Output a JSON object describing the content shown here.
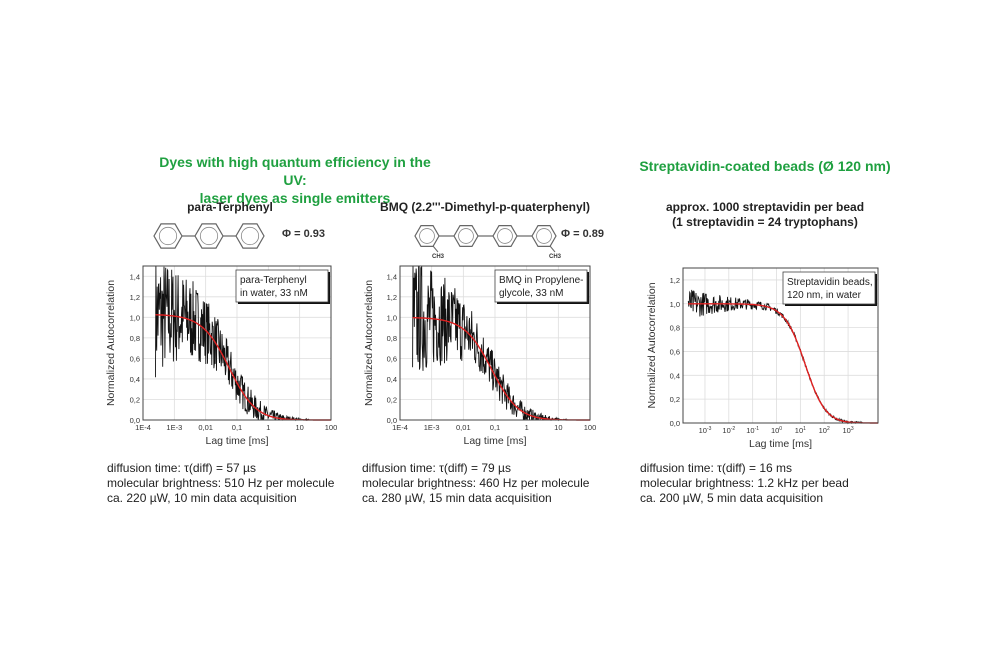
{
  "headings": {
    "left": [
      "Dyes with high quantum efficiency in the UV:",
      "laser dyes as single emitters"
    ],
    "right": "Streptavidin-coated beads (Ø 120 nm)"
  },
  "panels": [
    {
      "title": [
        "para-Terphenyl"
      ],
      "phi": "Φ = 0.93",
      "caption": [
        "diffusion time: τ(diff) = 57 µs",
        "molecular brightness: 510 Hz per molecule",
        "ca. 220 µW, 10 min data acquisition"
      ]
    },
    {
      "title": [
        "BMQ (2.2'''-Dimethyl-p-quaterphenyl)"
      ],
      "phi": "Φ = 0.89",
      "ch3": "CH3",
      "caption": [
        "diffusion time: τ(diff) = 79 µs",
        "molecular brightness: 460 Hz per molecule",
        "ca. 280 µW, 15 min data acquisition"
      ]
    },
    {
      "title": [
        "approx. 1000 streptavidin per bead",
        "(1 streptavidin = 24 tryptophans)"
      ],
      "caption": [
        "diffusion time: τ(diff) = 16 ms",
        "molecular brightness: 1.2 kHz per bead",
        "ca. 200 µW, 5 min data acquisition"
      ]
    }
  ],
  "chart_data": [
    {
      "type": "line",
      "xscale": "log",
      "xlim": [
        0.0001,
        100
      ],
      "ylim": [
        0,
        1.5
      ],
      "grid": true,
      "xlabel": "Lag time [ms]",
      "ylabel": "Normalized Autocorrelation",
      "xticks": [
        0.0001,
        0.001,
        0.01,
        0.1,
        1,
        10,
        100
      ],
      "xticklabels": [
        "1E-4",
        "1E-3",
        "0,01",
        "0,1",
        "1",
        "10",
        "100"
      ],
      "yticks": [
        0,
        0.2,
        0.4,
        0.6,
        0.8,
        1.0,
        1.2,
        1.4
      ],
      "yticklabels": [
        "0,0",
        "0,2",
        "0,4",
        "0,6",
        "0,8",
        "1,0",
        "1,2",
        "1,4"
      ],
      "legend": [
        "para-Terphenyl",
        "in water, 33 nM"
      ],
      "legend_position": "top-right",
      "series": [
        {
          "role": "data",
          "color": "#111111",
          "x": [
            0.00025,
            0.0005,
            0.001,
            0.002,
            0.005,
            0.01,
            0.02,
            0.05,
            0.1,
            0.2,
            0.5,
            1,
            3,
            10
          ],
          "y": [
            0.95,
            1.3,
            0.7,
            1.2,
            0.9,
            0.85,
            0.85,
            0.6,
            0.4,
            0.23,
            0.08,
            0.04,
            0.01,
            0.0
          ]
        },
        {
          "role": "fit",
          "color": "#e02020",
          "amplitude": 1.03,
          "tau_ms": 0.057
        }
      ]
    },
    {
      "type": "line",
      "xscale": "log",
      "xlim": [
        0.0001,
        100
      ],
      "ylim": [
        0,
        1.5
      ],
      "grid": true,
      "xlabel": "Lag time [ms]",
      "ylabel": "Normalized Autocorrelation",
      "xticks": [
        0.0001,
        0.001,
        0.01,
        0.1,
        1,
        10,
        100
      ],
      "xticklabels": [
        "1E-4",
        "1E-3",
        "0,01",
        "0,1",
        "1",
        "10",
        "100"
      ],
      "yticks": [
        0,
        0.2,
        0.4,
        0.6,
        0.8,
        1.0,
        1.2,
        1.4
      ],
      "yticklabels": [
        "0,0",
        "0,2",
        "0,4",
        "0,6",
        "0,8",
        "1,0",
        "1,2",
        "1,4"
      ],
      "legend": [
        "BMQ in Propylene-",
        "glycole, 33 nM"
      ],
      "legend_position": "top-right",
      "series": [
        {
          "role": "data",
          "color": "#111111",
          "x": [
            0.00025,
            0.0005,
            0.001,
            0.002,
            0.005,
            0.01,
            0.02,
            0.05,
            0.1,
            0.2,
            0.5,
            1,
            3,
            10
          ],
          "y": [
            1.2,
            0.8,
            1.2,
            1.1,
            0.9,
            0.95,
            0.85,
            0.7,
            0.5,
            0.3,
            0.12,
            0.05,
            0.02,
            0.0
          ]
        },
        {
          "role": "fit",
          "color": "#e02020",
          "amplitude": 1.0,
          "tau_ms": 0.079
        }
      ]
    },
    {
      "type": "line",
      "xscale": "log",
      "xlim": [
        0.00012,
        18000
      ],
      "ylim": [
        0,
        1.3
      ],
      "grid": true,
      "xlabel": "Lag time [ms]",
      "ylabel": "Normalized Autocorrelation",
      "xticks": [
        0.001,
        0.01,
        0.1,
        1,
        10,
        100,
        1000
      ],
      "xticklabels": [
        "10^-3",
        "10^-2",
        "10^-1",
        "10^0",
        "10^1",
        "10^2",
        "10^3"
      ],
      "yticks": [
        0,
        0.2,
        0.4,
        0.6,
        0.8,
        1.0,
        1.2
      ],
      "yticklabels": [
        "0,0",
        "0,2",
        "0,4",
        "0,6",
        "0,8",
        "1,0",
        "1,2"
      ],
      "legend": [
        "Streptavidin beads,",
        "120 nm, in water"
      ],
      "legend_position": "top-right",
      "series": [
        {
          "role": "data",
          "color": "#111111",
          "x": [
            0.0002,
            0.0003,
            0.001,
            0.01,
            0.1,
            1,
            10,
            30,
            100,
            1000
          ],
          "y": [
            0.82,
            1.25,
            1.05,
            1.02,
            1.0,
            0.95,
            0.5,
            0.2,
            0.03,
            0.01
          ]
        },
        {
          "role": "fit",
          "color": "#e02020",
          "amplitude": 1.0,
          "tau_ms": 16
        }
      ]
    }
  ]
}
